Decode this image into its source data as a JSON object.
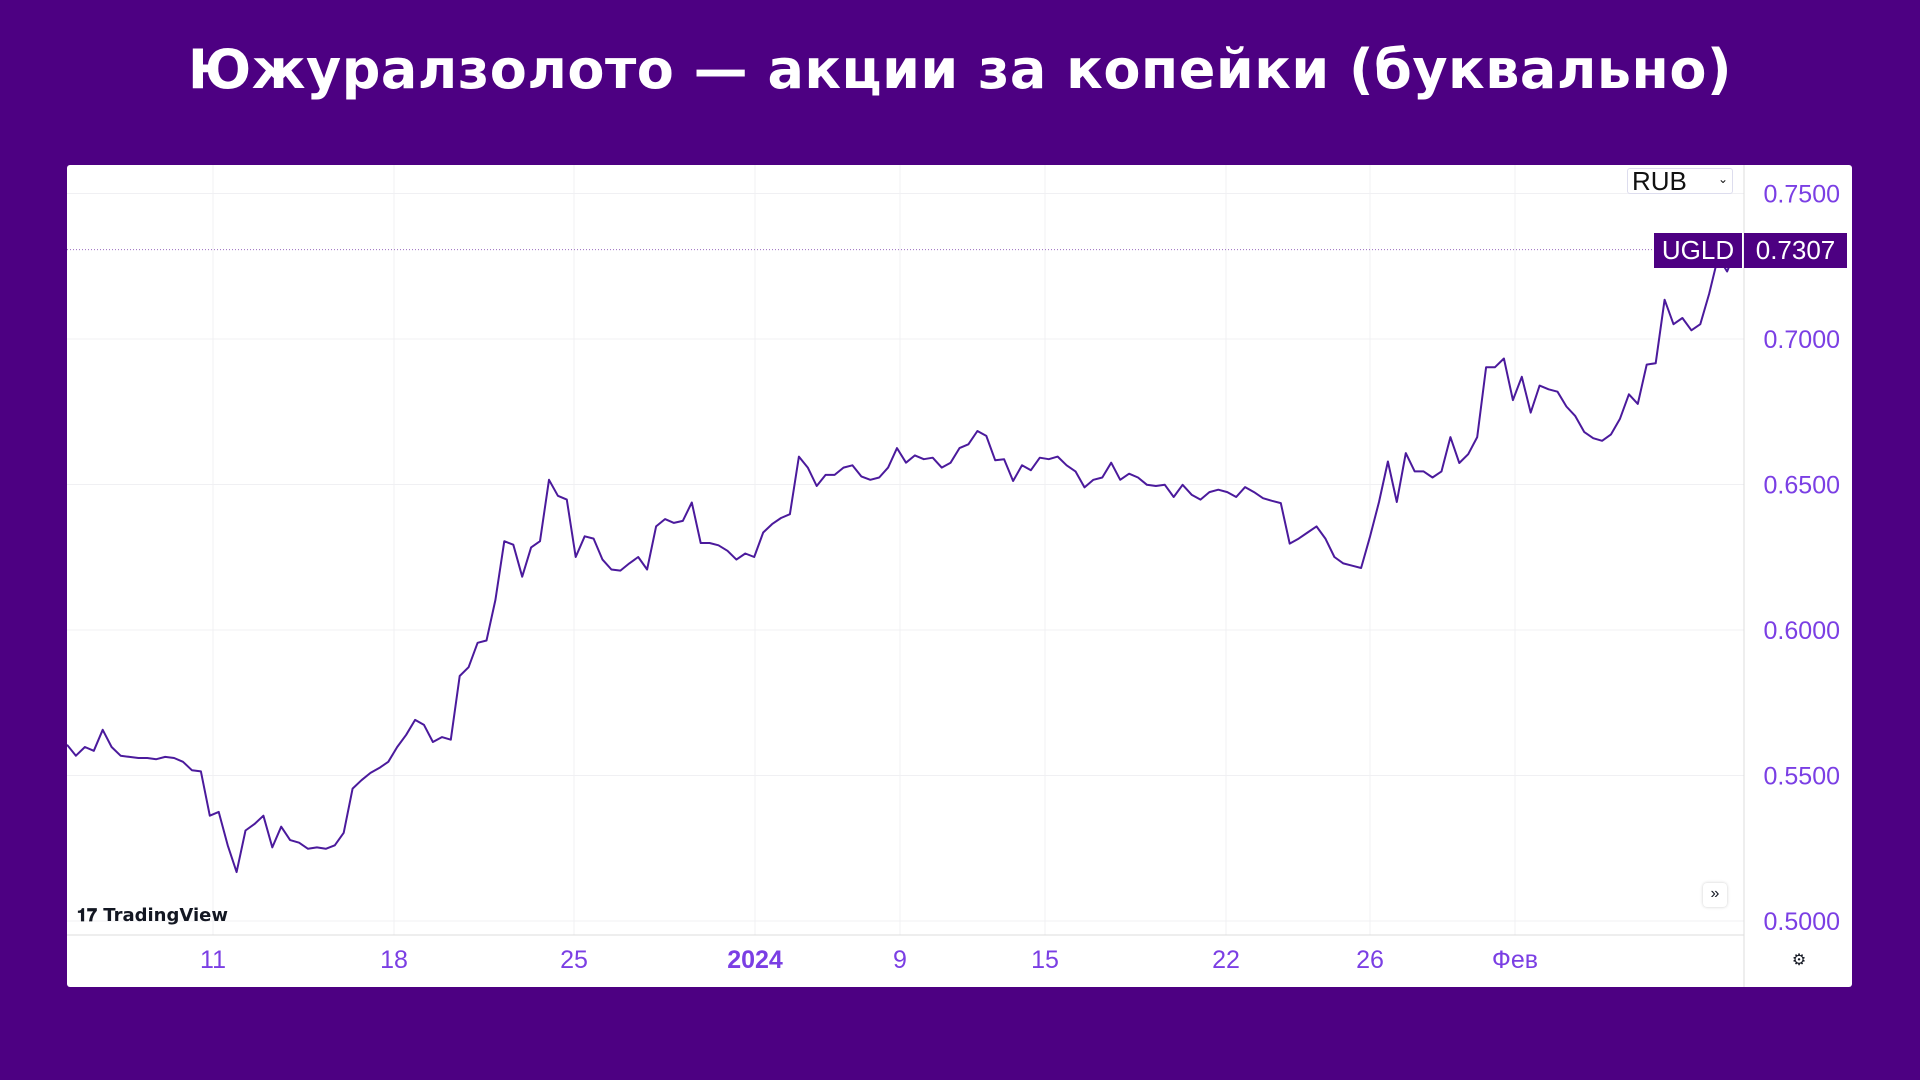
{
  "title": "Южуралзолото — акции за копейки (буквально)",
  "currency_selector": {
    "value": "RUB",
    "icon": "chevron-down-icon"
  },
  "price_tag": {
    "symbol": "UGLD",
    "value": "0.7307"
  },
  "branding": {
    "logo_text": "TradingView"
  },
  "controls": {
    "scroll_icon": "double-chevron-right-icon",
    "settings_icon": "gear-icon"
  },
  "colors": {
    "background": "#4d0082",
    "line": "#4b1a9c",
    "axis_labels": "#7b3fe4",
    "tag": "#4d0082"
  },
  "chart_data": {
    "type": "line",
    "title": "",
    "xlabel": "",
    "ylabel": "",
    "ylim": [
      0.5,
      0.75
    ],
    "grid": true,
    "y_ticks": [
      "0.5000",
      "0.5500",
      "0.6000",
      "0.6500",
      "0.7000",
      "0.7500"
    ],
    "x_ticks": [
      "11",
      "18",
      "25",
      "2024",
      "9",
      "15",
      "22",
      "26",
      "Фев"
    ],
    "last_value": 0.7307,
    "values": [
      0.5606,
      0.5568,
      0.5598,
      0.5585,
      0.5657,
      0.5598,
      0.5568,
      0.5564,
      0.556,
      0.556,
      0.5556,
      0.5564,
      0.556,
      0.5547,
      0.5518,
      0.5514,
      0.5362,
      0.5375,
      0.526,
      0.5168,
      0.5311,
      0.5333,
      0.5362,
      0.5253,
      0.5324,
      0.5278,
      0.5269,
      0.5248,
      0.5253,
      0.5248,
      0.526,
      0.5303,
      0.5455,
      0.5484,
      0.5509,
      0.5526,
      0.5547,
      0.5598,
      0.564,
      0.5691,
      0.5674,
      0.5615,
      0.5632,
      0.5623,
      0.5842,
      0.5872,
      0.5956,
      0.5964,
      0.6103,
      0.6305,
      0.6293,
      0.6183,
      0.6284,
      0.6305,
      0.6516,
      0.6461,
      0.6448,
      0.6251,
      0.6322,
      0.6314,
      0.6242,
      0.6208,
      0.6204,
      0.6229,
      0.6251,
      0.6208,
      0.6356,
      0.6381,
      0.6368,
      0.6375,
      0.6438,
      0.6299,
      0.6299,
      0.6291,
      0.6272,
      0.6242,
      0.6263,
      0.6251,
      0.6335,
      0.6364,
      0.6385,
      0.6398,
      0.6596,
      0.6558,
      0.6495,
      0.6533,
      0.6533,
      0.6558,
      0.6566,
      0.6528,
      0.6516,
      0.6524,
      0.6558,
      0.6625,
      0.6575,
      0.66,
      0.6587,
      0.6592,
      0.6558,
      0.6575,
      0.6625,
      0.6638,
      0.6684,
      0.6667,
      0.6583,
      0.6587,
      0.6512,
      0.6566,
      0.6549,
      0.6592,
      0.6587,
      0.6596,
      0.6566,
      0.6545,
      0.649,
      0.6516,
      0.6524,
      0.6575,
      0.6516,
      0.6537,
      0.6524,
      0.6499,
      0.6495,
      0.6499,
      0.6457,
      0.6499,
      0.6465,
      0.6448,
      0.6474,
      0.6482,
      0.6474,
      0.6457,
      0.6491,
      0.6474,
      0.6453,
      0.6444,
      0.6436,
      0.6297,
      0.6314,
      0.6335,
      0.6356,
      0.6314,
      0.6251,
      0.6229,
      0.6221,
      0.6213,
      0.6322,
      0.644,
      0.6579,
      0.644,
      0.6608,
      0.6545,
      0.6545,
      0.6524,
      0.6545,
      0.6663,
      0.6574,
      0.6604,
      0.6663,
      0.6903,
      0.6903,
      0.6933,
      0.679,
      0.687,
      0.6747,
      0.684,
      0.6827,
      0.6819,
      0.6768,
      0.6735,
      0.668,
      0.6659,
      0.665,
      0.6672,
      0.6726,
      0.681,
      0.6777,
      0.6912,
      0.6917,
      0.7135,
      0.7051,
      0.7072,
      0.703,
      0.7051,
      0.7156,
      0.7282,
      0.7232,
      0.7307
    ]
  }
}
